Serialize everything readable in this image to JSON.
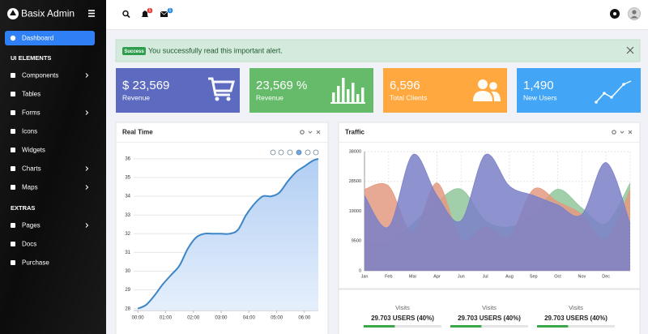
{
  "sidebar": {
    "brand": "Basix Admin",
    "active": "Dashboard",
    "sections": [
      {
        "heading": "UI ELEMENTS",
        "items": [
          {
            "label": "Components",
            "submenu": true
          },
          {
            "label": "Tables",
            "submenu": false
          },
          {
            "label": "Forms",
            "submenu": true
          },
          {
            "label": "Icons",
            "submenu": false
          },
          {
            "label": "Widgets",
            "submenu": false
          },
          {
            "label": "Charts",
            "submenu": true
          },
          {
            "label": "Maps",
            "submenu": true
          }
        ]
      },
      {
        "heading": "EXTRAS",
        "items": [
          {
            "label": "Pages",
            "submenu": true
          },
          {
            "label": "Docs",
            "submenu": false
          },
          {
            "label": "Purchase",
            "submenu": false
          }
        ]
      }
    ]
  },
  "topbar": {
    "notifications": 5,
    "messages": 5
  },
  "alert": {
    "badge": "Success",
    "text": "You successfully read this important alert."
  },
  "cards": [
    {
      "value": "$ 23,569",
      "label": "Revenue",
      "color": "#5c6bc0"
    },
    {
      "value": "23,569 %",
      "label": "Revenue",
      "color": "#66bb6a"
    },
    {
      "value": "6,596",
      "label": "Total Clients",
      "color": "#ffa83f"
    },
    {
      "value": "1,490",
      "label": "New Users",
      "color": "#42a5f5"
    }
  ],
  "chart_data": [
    {
      "type": "area",
      "title": "Real Time",
      "x": [
        0,
        0.3,
        0.6,
        0.9,
        1.2,
        1.5,
        1.8,
        2.1,
        2.4,
        2.7,
        3.0,
        3.3,
        3.6,
        3.9,
        4.2,
        4.5,
        4.8,
        5.1,
        5.4,
        5.7,
        6.0,
        6.3,
        6.5
      ],
      "series": [
        {
          "color": "#3d85c6",
          "values": [
            28,
            28.2,
            28.7,
            29.3,
            29.8,
            30.3,
            31.2,
            31.8,
            32,
            32,
            32,
            32,
            32.2,
            33,
            33.6,
            34,
            34,
            34.2,
            34.8,
            35.3,
            35.6,
            35.9,
            36
          ]
        }
      ],
      "xlim": [
        -0.15,
        6.5
      ],
      "xticks": [
        {
          "value": 0,
          "label": "00:00"
        },
        {
          "value": 1,
          "label": "01:00"
        },
        {
          "value": 2,
          "label": "02:00"
        },
        {
          "value": 3,
          "label": "03:00"
        },
        {
          "value": 4,
          "label": "04:00"
        },
        {
          "value": 5,
          "label": "05:00"
        },
        {
          "value": 6,
          "label": "06:00"
        }
      ],
      "ylim": [
        27.9,
        36.3
      ],
      "yticks": [
        28,
        29,
        30,
        31,
        32,
        33,
        34,
        35,
        36
      ],
      "grid": true
    },
    {
      "type": "area",
      "title": "Traffic",
      "categories": [
        "Jan",
        "Feb",
        "Mar",
        "Apr",
        "Jun",
        "Jul",
        "Aug",
        "Sep",
        "Oct",
        "Nov",
        "Dec",
        null
      ],
      "series": [
        {
          "color": "#8fc79b",
          "values": [
            9000,
            9000,
            15000,
            22000,
            26000,
            16000,
            14000,
            18000,
            26000,
            20000,
            15000,
            28000
          ]
        },
        {
          "color": "#e39a80",
          "values": [
            26000,
            27000,
            12000,
            28000,
            10000,
            14000,
            11000,
            26000,
            22000,
            18000,
            10000,
            26000
          ]
        },
        {
          "color": "#7a80c8",
          "values": [
            24000,
            14000,
            37000,
            24000,
            16000,
            37000,
            27000,
            24000,
            21000,
            18000,
            34500,
            15000
          ]
        }
      ],
      "ylim": [
        0,
        38000
      ],
      "yticks": [
        0,
        9500,
        19000,
        28500,
        38000
      ],
      "grid": true
    }
  ],
  "traffic_footer": [
    {
      "label": "Visits",
      "value": "29.703 USERS (40%)",
      "progress": 40
    },
    {
      "label": "Visits",
      "value": "29.703 USERS (40%)",
      "progress": 40
    },
    {
      "label": "Visits",
      "value": "29.703 USERS (40%)",
      "progress": 40
    }
  ]
}
